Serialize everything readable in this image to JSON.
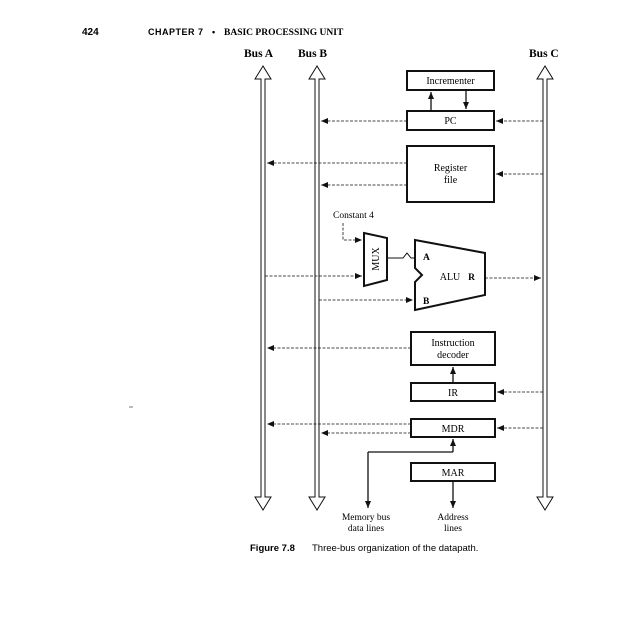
{
  "header": {
    "page_number": "424",
    "chapter": "CHAPTER 7",
    "separator": "•",
    "title": "BASIC PROCESSING UNIT"
  },
  "buses": {
    "a": "Bus A",
    "b": "Bus B",
    "c": "Bus C"
  },
  "blocks": {
    "incrementer": "Incrementer",
    "pc": "PC",
    "register_file_line1": "Register",
    "register_file_line2": "file",
    "constant": "Constant 4",
    "mux": "MUX",
    "alu": "ALU",
    "alu_in_a": "A",
    "alu_in_b": "B",
    "alu_out_r": "R",
    "decoder_line1": "Instruction",
    "decoder_line2": "decoder",
    "ir": "IR",
    "mdr": "MDR",
    "mar": "MAR"
  },
  "external": {
    "memory_line1": "Memory bus",
    "memory_line2": "data lines",
    "address_line1": "Address",
    "address_line2": "lines"
  },
  "caption": {
    "number": "Figure 7.8",
    "text": "Three-bus organization of the datapath."
  }
}
